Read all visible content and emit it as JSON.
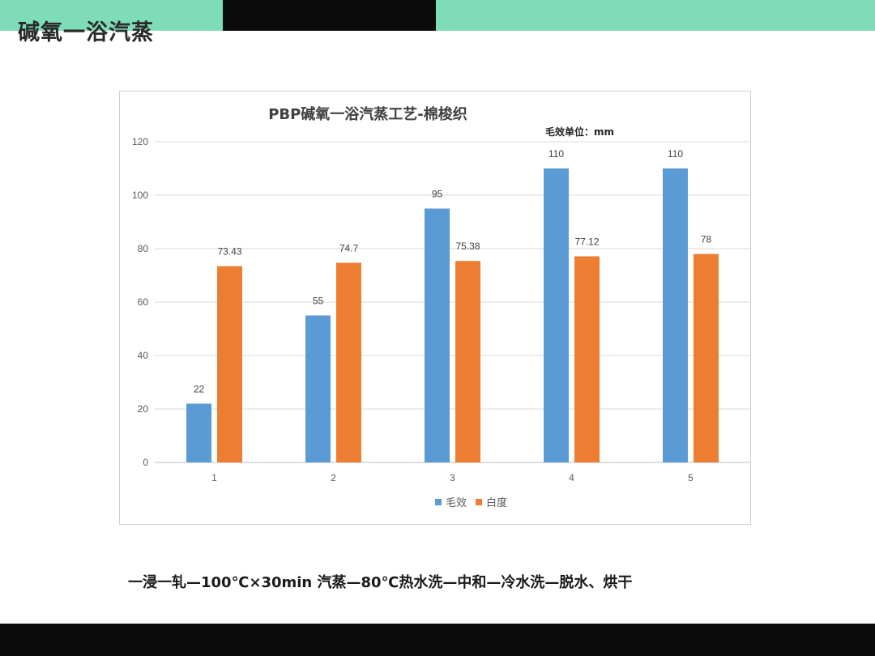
{
  "slide": {
    "title": "碱氧一浴汽蒸",
    "caption": "一浸一轧—100℃×30min 汽蒸—80℃热水洗—中和—冷水洗—脱水、烘干"
  },
  "colors": {
    "band_green": "#7fdcb9",
    "band_black": "#0b0b0b",
    "series_blue": "#5b9bd5",
    "series_orange": "#ed7d31"
  },
  "chart_data": {
    "type": "bar",
    "title": "PBP碱氧一浴汽蒸工艺-棉梭织",
    "subtitle": "毛效单位：mm",
    "categories": [
      "1",
      "2",
      "3",
      "4",
      "5"
    ],
    "series": [
      {
        "name": "毛效",
        "values": [
          22,
          55,
          95,
          110,
          110
        ],
        "labels": [
          "22",
          "55",
          "95",
          "110",
          "110"
        ]
      },
      {
        "name": "白度",
        "values": [
          73.43,
          74.7,
          75.38,
          77.12,
          78
        ],
        "labels": [
          "73.43",
          "74.7",
          "75.38",
          "77.12",
          "78"
        ]
      }
    ],
    "yticks": [
      "0",
      "20",
      "40",
      "60",
      "80",
      "100",
      "120"
    ],
    "ylim": [
      0,
      120
    ],
    "grid": true,
    "legend": "bottom-center"
  }
}
